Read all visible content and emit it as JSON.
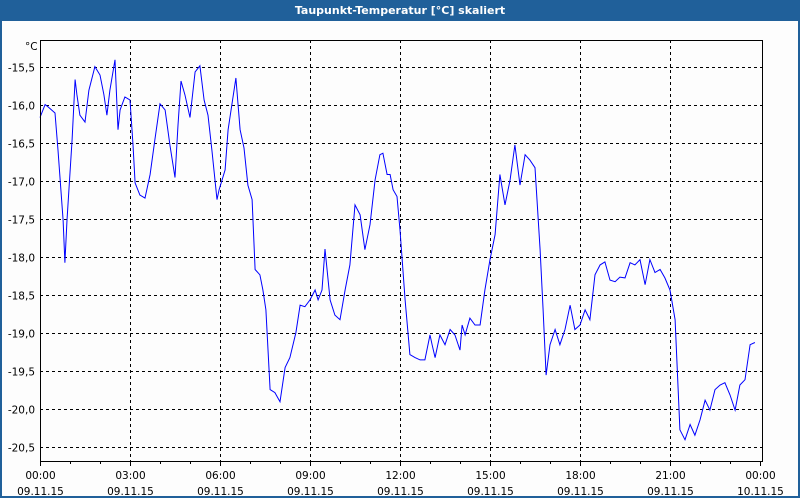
{
  "window": {
    "title": "Taupunkt-Temperatur [°C] skaliert"
  },
  "chart_data": {
    "type": "line",
    "title": "Taupunkt-Temperatur [°C] skaliert",
    "ylabel": "°C",
    "xlabel": "",
    "ylim": [
      -20.68,
      -15.14
    ],
    "xlim": [
      0,
      24
    ],
    "grid": true,
    "line_color": "#0000ff",
    "yticks": [
      -15.5,
      -16.0,
      -16.5,
      -17.0,
      -17.5,
      -18.0,
      -18.5,
      -19.0,
      -19.5,
      -20.0,
      -20.5
    ],
    "ytick_labels": [
      "-15,5",
      "-16,0",
      "-16,5",
      "-17,0",
      "-17,5",
      "-18,0",
      "-18,5",
      "-19,0",
      "-19,5",
      "-20,0",
      "-20,5"
    ],
    "xticks": [
      0,
      3,
      6,
      9,
      12,
      15,
      18,
      21,
      24
    ],
    "xtick_labels": [
      {
        "time": "00:00",
        "date": "09.11.15"
      },
      {
        "time": "03:00",
        "date": "09.11.15"
      },
      {
        "time": "06:00",
        "date": "09.11.15"
      },
      {
        "time": "09:00",
        "date": "09.11.15"
      },
      {
        "time": "12:00",
        "date": "09.11.15"
      },
      {
        "time": "15:00",
        "date": "09.11.15"
      },
      {
        "time": "18:00",
        "date": "09.11.15"
      },
      {
        "time": "21:00",
        "date": "09.11.15"
      },
      {
        "time": "00:00",
        "date": "10.11.15"
      }
    ],
    "series": [
      {
        "name": "Taupunkt-Temperatur",
        "x": [
          0,
          0.17,
          0.27,
          0.5,
          0.6,
          0.77,
          0.83,
          0.9,
          1.07,
          1.17,
          1.23,
          1.33,
          1.5,
          1.63,
          1.83,
          2,
          2.13,
          2.23,
          2.33,
          2.5,
          2.6,
          2.67,
          2.83,
          3,
          3.1,
          3.17,
          3.33,
          3.5,
          3.67,
          3.83,
          4,
          4.17,
          4.33,
          4.5,
          4.6,
          4.7,
          4.83,
          5,
          5.17,
          5.33,
          5.47,
          5.6,
          5.73,
          5.9,
          5.97,
          6.17,
          6.27,
          6.43,
          6.53,
          6.67,
          6.8,
          6.93,
          7.07,
          7.17,
          7.33,
          7.43,
          7.53,
          7.67,
          7.83,
          8,
          8.17,
          8.33,
          8.53,
          8.67,
          8.83,
          9,
          9.17,
          9.27,
          9.4,
          9.5,
          9.67,
          9.83,
          10,
          10.17,
          10.33,
          10.5,
          10.67,
          10.83,
          11,
          11.17,
          11.33,
          11.43,
          11.57,
          11.67,
          11.77,
          11.9,
          12,
          12.17,
          12.33,
          12.5,
          12.67,
          12.83,
          13,
          13.07,
          13.17,
          13.33,
          13.5,
          13.67,
          13.83,
          14,
          14.07,
          14.17,
          14.33,
          14.5,
          14.67,
          14.83,
          15,
          15.17,
          15.33,
          15.5,
          15.67,
          15.83,
          16,
          16.17,
          16.33,
          16.5,
          16.67,
          16.77,
          16.87,
          17,
          17.17,
          17.33,
          17.5,
          17.67,
          17.83,
          18,
          18.17,
          18.33,
          18.5,
          18.67,
          18.83,
          19,
          19.17,
          19.33,
          19.5,
          19.67,
          19.83,
          20,
          20.17,
          20.33,
          20.5,
          20.67,
          20.83,
          21,
          21.17,
          21.33,
          21.5,
          21.67,
          21.83,
          22,
          22.17,
          22.33,
          22.5,
          22.67,
          22.83,
          23,
          23.17,
          23.33,
          23.5,
          23.67,
          23.83
        ],
        "y": [
          -16.16,
          -15.99,
          -16.02,
          -16.1,
          -16.59,
          -17.51,
          -18.07,
          -17.51,
          -16.45,
          -15.66,
          -15.86,
          -16.13,
          -16.22,
          -15.8,
          -15.49,
          -15.6,
          -15.86,
          -16.13,
          -15.8,
          -15.4,
          -16.32,
          -16.06,
          -15.89,
          -15.93,
          -16.52,
          -17.02,
          -17.18,
          -17.22,
          -16.91,
          -16.45,
          -15.98,
          -16.06,
          -16.52,
          -16.95,
          -16.26,
          -15.68,
          -15.86,
          -16.16,
          -15.56,
          -15.48,
          -15.93,
          -16.13,
          -16.59,
          -17.24,
          -17.11,
          -16.85,
          -16.32,
          -15.9,
          -15.64,
          -16.32,
          -16.56,
          -17.05,
          -17.24,
          -18.16,
          -18.23,
          -18.43,
          -18.69,
          -19.74,
          -19.78,
          -19.9,
          -19.45,
          -19.32,
          -18.99,
          -18.63,
          -18.65,
          -18.56,
          -18.43,
          -18.56,
          -18.43,
          -17.89,
          -18.56,
          -18.76,
          -18.82,
          -18.43,
          -18.1,
          -17.31,
          -17.44,
          -17.9,
          -17.57,
          -16.98,
          -16.65,
          -16.63,
          -16.91,
          -16.91,
          -17.11,
          -17.2,
          -17.64,
          -18.56,
          -19.28,
          -19.32,
          -19.35,
          -19.35,
          -19.02,
          -19.15,
          -19.32,
          -19.02,
          -19.15,
          -18.95,
          -19.02,
          -19.22,
          -18.89,
          -19.02,
          -18.8,
          -18.89,
          -18.89,
          -18.43,
          -18.03,
          -17.7,
          -16.91,
          -17.31,
          -16.98,
          -16.52,
          -17.05,
          -16.65,
          -16.72,
          -16.82,
          -17.9,
          -18.69,
          -19.55,
          -19.15,
          -18.95,
          -19.15,
          -18.95,
          -18.63,
          -18.95,
          -18.89,
          -18.69,
          -18.82,
          -18.23,
          -18.1,
          -18.06,
          -18.3,
          -18.32,
          -18.26,
          -18.27,
          -18.07,
          -18.1,
          -18.03,
          -18.36,
          -18.03,
          -18.2,
          -18.16,
          -18.27,
          -18.43,
          -18.82,
          -20.27,
          -20.4,
          -20.2,
          -20.34,
          -20.14,
          -19.88,
          -20.01,
          -19.74,
          -19.68,
          -19.65,
          -19.81,
          -20.01,
          -19.68,
          -19.61,
          -19.15,
          -19.12
        ]
      }
    ]
  }
}
